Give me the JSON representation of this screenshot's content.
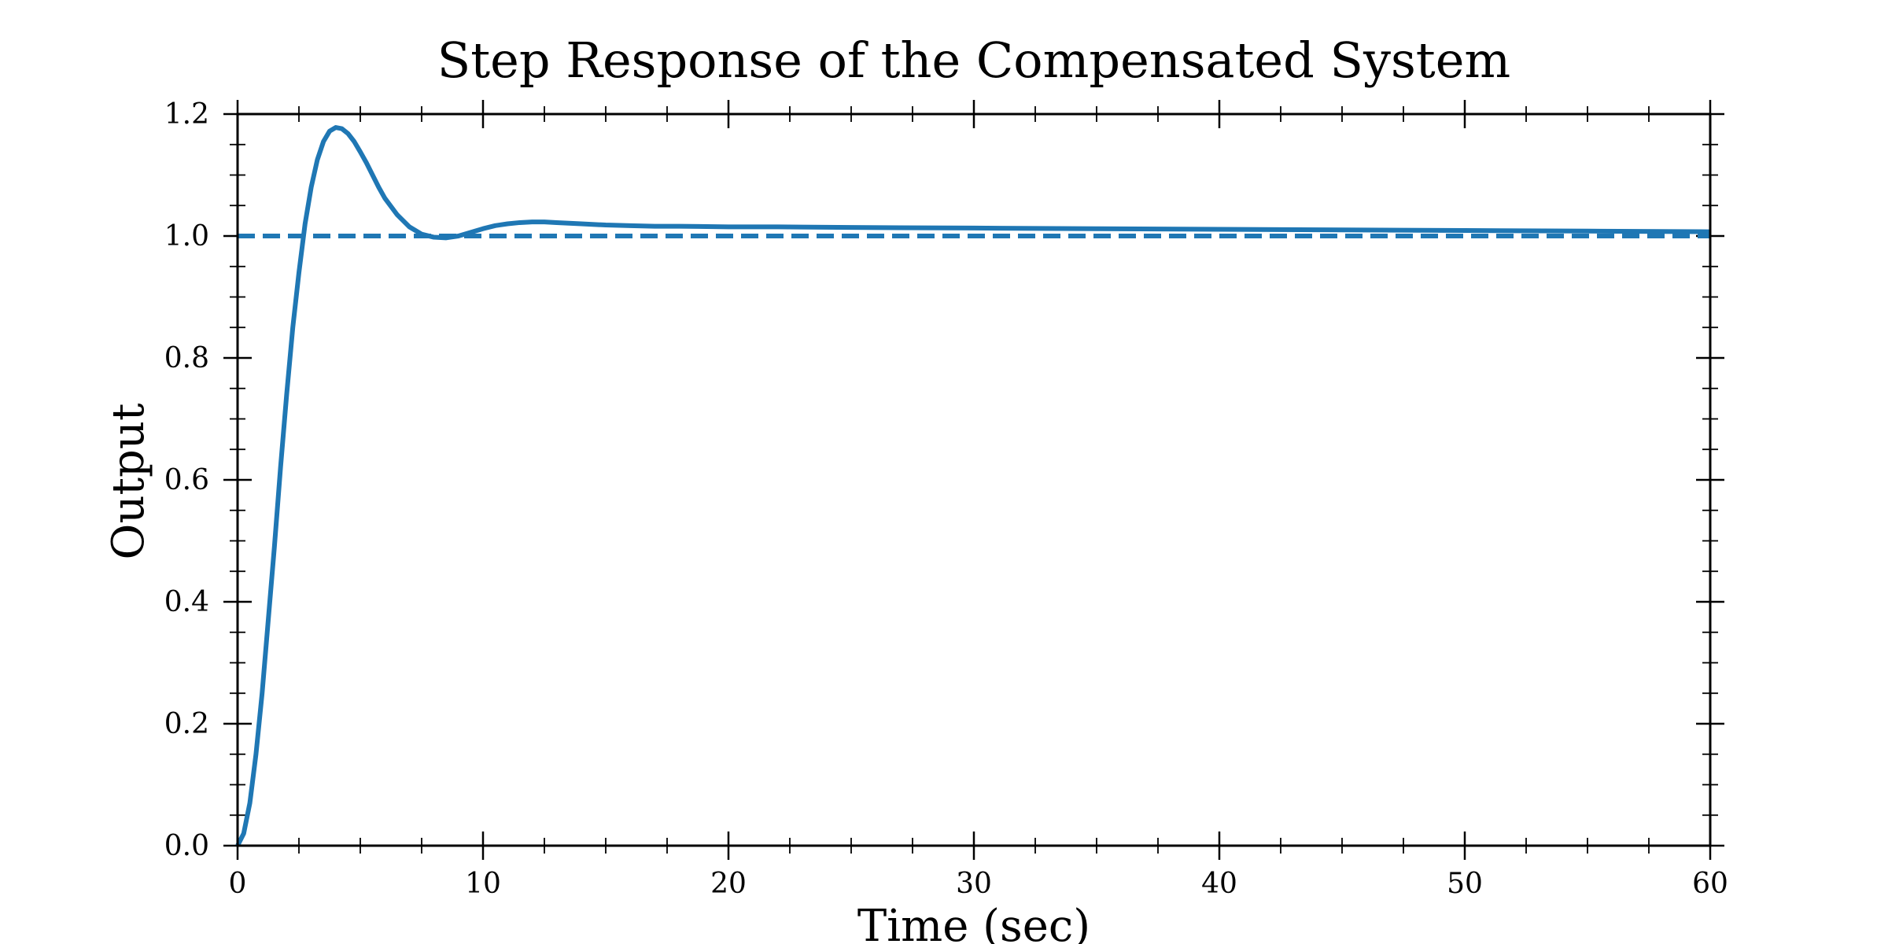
{
  "chart_data": {
    "type": "line",
    "title": "Step Response of the Compensated System",
    "xlabel": "Time (sec)",
    "ylabel": "Output",
    "xlim": [
      0,
      60
    ],
    "ylim": [
      0,
      1.2
    ],
    "x_ticks": [
      "0",
      "10",
      "20",
      "30",
      "40",
      "50",
      "60"
    ],
    "y_ticks": [
      "0.0",
      "0.2",
      "0.4",
      "0.6",
      "0.8",
      "1.0",
      "1.2"
    ],
    "grid": false,
    "legend": null,
    "colors": {
      "series": "#1f77b4",
      "axes": "#000000"
    },
    "series": [
      {
        "style": "solid",
        "x": [
          0,
          0.25,
          0.5,
          0.75,
          1,
          1.25,
          1.5,
          1.75,
          2,
          2.25,
          2.5,
          2.75,
          3,
          3.25,
          3.5,
          3.75,
          4,
          4.25,
          4.5,
          4.75,
          5,
          5.25,
          5.5,
          5.75,
          6,
          6.5,
          7,
          7.5,
          8,
          8.5,
          9,
          9.5,
          10,
          10.5,
          11,
          11.5,
          12,
          12.5,
          13,
          13.5,
          14,
          15,
          16,
          17,
          18,
          20,
          22,
          25,
          30,
          35,
          40,
          45,
          50,
          55,
          60
        ],
        "y": [
          0.0,
          0.02,
          0.07,
          0.15,
          0.25,
          0.37,
          0.49,
          0.62,
          0.74,
          0.85,
          0.94,
          1.02,
          1.08,
          1.125,
          1.155,
          1.172,
          1.178,
          1.176,
          1.168,
          1.155,
          1.138,
          1.12,
          1.1,
          1.08,
          1.062,
          1.035,
          1.015,
          1.003,
          0.998,
          0.997,
          1.0,
          1.006,
          1.012,
          1.017,
          1.02,
          1.022,
          1.023,
          1.023,
          1.022,
          1.021,
          1.02,
          1.018,
          1.017,
          1.016,
          1.016,
          1.015,
          1.015,
          1.014,
          1.013,
          1.012,
          1.011,
          1.01,
          1.009,
          1.008,
          1.007
        ]
      },
      {
        "style": "dashed",
        "x": [
          0,
          60
        ],
        "y": [
          1.0,
          1.0
        ]
      }
    ]
  }
}
